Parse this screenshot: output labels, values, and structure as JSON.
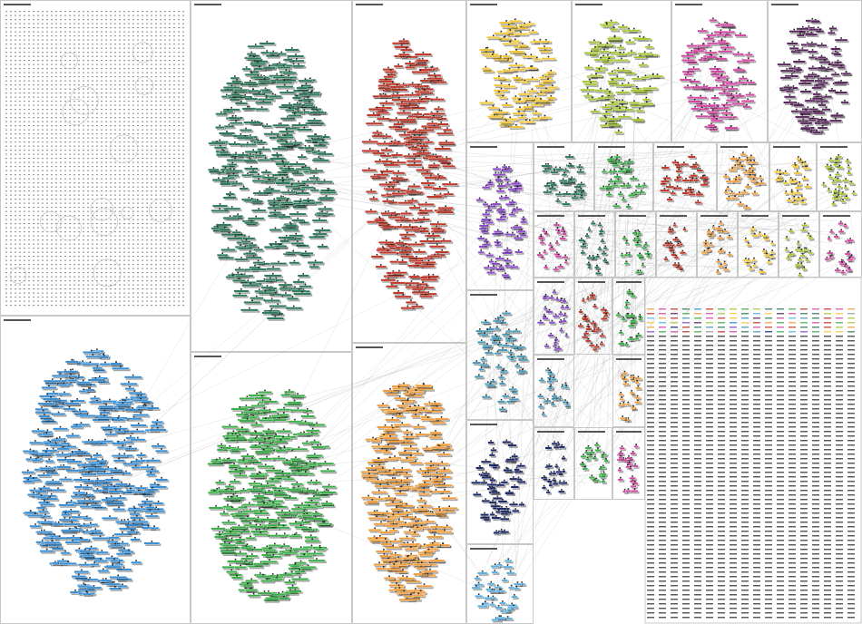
{
  "panels": [
    {
      "color": "#9a9a9a"
    },
    {
      "color": "#2f7a5c"
    },
    {
      "color": "#c0392b"
    },
    {
      "color": "#3a8fd4"
    },
    {
      "color": "#3cae4a"
    },
    {
      "color": "#f0a040"
    },
    {
      "color": "#f2c83c"
    },
    {
      "color": "#a8c83a"
    },
    {
      "color": "#d24aa4"
    },
    {
      "color": "#5a2a5e"
    },
    {
      "color": "#8a4ac8"
    },
    {
      "color": "#2f7a5c"
    },
    {
      "color": "#3cae4a"
    },
    {
      "color": "#c0392b"
    },
    {
      "color": "#f0a040"
    },
    {
      "color": "#f2c83c"
    },
    {
      "color": "#a8c83a"
    },
    {
      "color": "#d24aa4"
    },
    {
      "color": "#2f7a5c"
    },
    {
      "color": "#3cae4a"
    },
    {
      "color": "#c0392b"
    },
    {
      "color": "#f0a040"
    },
    {
      "color": "#f2c83c"
    },
    {
      "color": "#a8c83a"
    },
    {
      "color": "#d24aa4"
    },
    {
      "color": "#4a9ab8"
    },
    {
      "color": "#8a4ac8"
    },
    {
      "color": "#c0392b"
    },
    {
      "color": "#3cae4a"
    },
    {
      "color": "#1f2a6a"
    },
    {
      "color": "#4a9ab8"
    },
    {
      "color": "#f0a040"
    },
    {
      "color": "#5ab0e0"
    },
    {
      "color": "#1f2a6a"
    },
    {
      "color": "#3cae4a"
    },
    {
      "color": "#d24aa4"
    }
  ]
}
